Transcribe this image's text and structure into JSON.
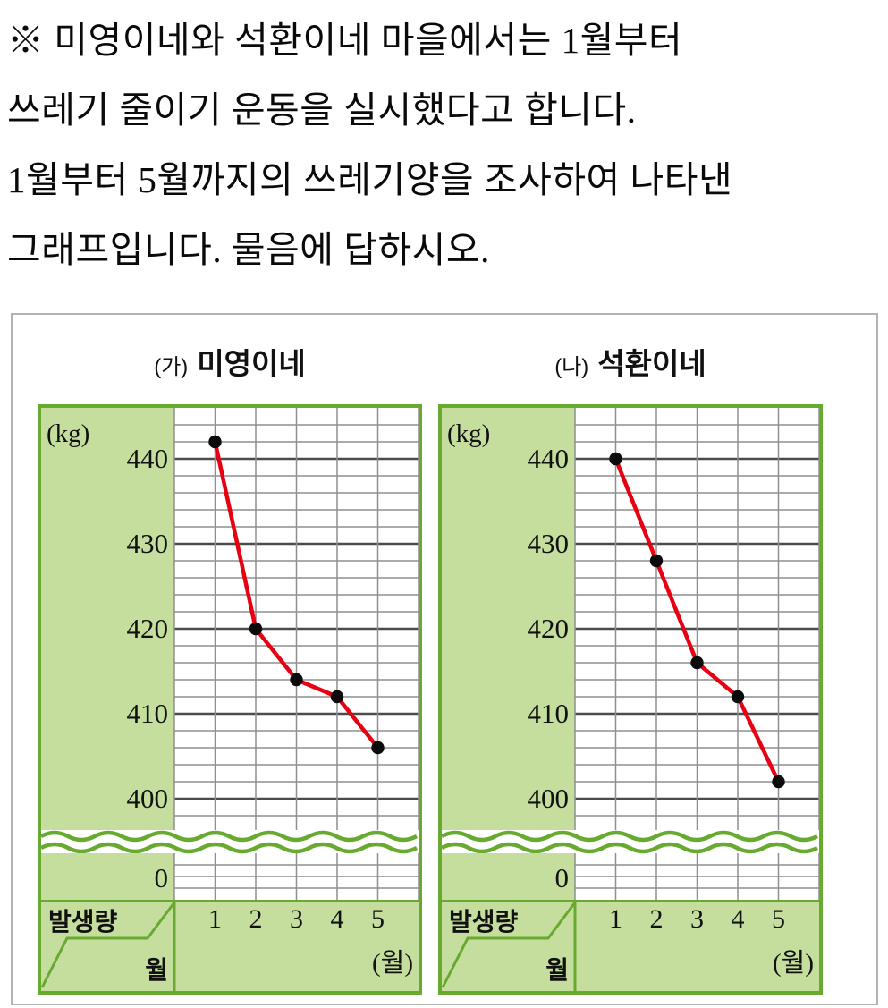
{
  "problem": {
    "lines": [
      "※ 미영이네와 석환이네 마을에서는 1월부터",
      "쓰레기 줄이기 운동을 실시했다고 합니다.",
      "1월부터 5월까지의 쓰레기양을 조사하여 나타낸",
      "그래프입니다. 물음에 답하시오."
    ]
  },
  "charts": [
    {
      "label_prefix": "(가)",
      "title": "미영이네",
      "unit_label": "(kg)",
      "zero_label": "0",
      "corner": {
        "row_label": "발생량",
        "col_label": "월"
      },
      "x_unit_label": "(월)"
    },
    {
      "label_prefix": "(나)",
      "title": "석환이네",
      "unit_label": "(kg)",
      "zero_label": "0",
      "corner": {
        "row_label": "발생량",
        "col_label": "월"
      },
      "x_unit_label": "(월)"
    }
  ],
  "chart_data": [
    {
      "type": "line",
      "title": "(가) 미영이네",
      "categories": [
        "1",
        "2",
        "3",
        "4",
        "5"
      ],
      "values": [
        442,
        420,
        414,
        412,
        406
      ],
      "xlabel": "월",
      "ylabel": "발생량 (kg)",
      "y_ticks": [
        440,
        430,
        420,
        410,
        400
      ],
      "ylim": [
        396,
        446
      ],
      "minor_grid_step": 2,
      "axis_break_to_zero": true,
      "zero_label": "0",
      "grid": true,
      "legend": "none",
      "line_color": "#e70012",
      "point_color": "#0b0b0b"
    },
    {
      "type": "line",
      "title": "(나) 석환이네",
      "categories": [
        "1",
        "2",
        "3",
        "4",
        "5"
      ],
      "values": [
        440,
        428,
        416,
        412,
        402
      ],
      "xlabel": "월",
      "ylabel": "발생량 (kg)",
      "y_ticks": [
        440,
        430,
        420,
        410,
        400
      ],
      "ylim": [
        396,
        446
      ],
      "minor_grid_step": 2,
      "axis_break_to_zero": true,
      "zero_label": "0",
      "grid": true,
      "legend": "none",
      "line_color": "#e70012",
      "point_color": "#0b0b0b"
    }
  ],
  "colors": {
    "panel_border_green": "#68aa30",
    "panel_fill_light_green": "#c5de9d",
    "grid_major": "#4b4b4b",
    "grid_minor": "#8f8f8f",
    "outer_box_border": "#b3b3b3",
    "series_red": "#e70012",
    "point_black": "#0b0b0b",
    "text": "#111111"
  }
}
